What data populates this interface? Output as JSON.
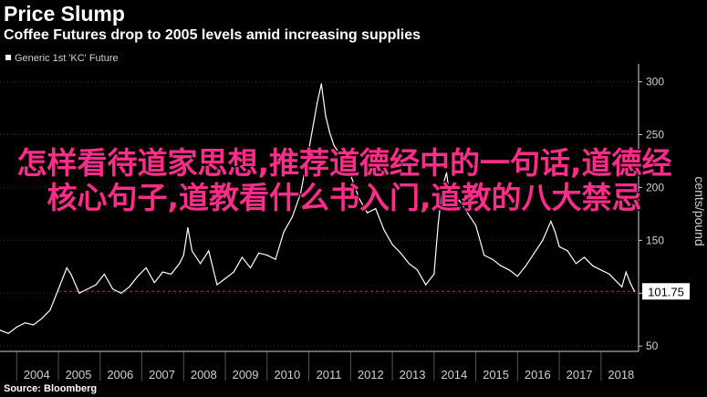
{
  "header": {
    "title": "Price Slump",
    "subtitle": "Coffee Futures drop to 2005 levels amid increasing supplies",
    "source": "Source: Bloomberg"
  },
  "overlay": {
    "text": "怎样看待道家思想,推荐道德经中的一句话,道德经核心句子,道教看什么书入门,道教的八大禁忌"
  },
  "chart_data": {
    "type": "line",
    "legend": {
      "placement": "top-left",
      "entries": [
        "Generic 1st 'KC' Future"
      ]
    },
    "ylabel": "cents/pound",
    "ylim": [
      45,
      310
    ],
    "yticks": [
      50,
      100,
      150,
      200,
      250,
      300
    ],
    "xlim": [
      2003.6,
      2018.9
    ],
    "xticks": [
      "2004",
      "2005",
      "2006",
      "2007",
      "2008",
      "2009",
      "2010",
      "2011",
      "2012",
      "2013",
      "2014",
      "2015",
      "2016",
      "2017",
      "2018"
    ],
    "last_value": 101.75,
    "last_value_label": "101.75",
    "reference_line": 101.75,
    "series": [
      {
        "name": "Generic 1st 'KC' Future",
        "points": [
          [
            2003.6,
            65
          ],
          [
            2003.8,
            62
          ],
          [
            2004.0,
            68
          ],
          [
            2004.2,
            72
          ],
          [
            2004.4,
            70
          ],
          [
            2004.6,
            76
          ],
          [
            2004.8,
            84
          ],
          [
            2005.0,
            104
          ],
          [
            2005.2,
            124
          ],
          [
            2005.3,
            118
          ],
          [
            2005.5,
            100
          ],
          [
            2005.7,
            104
          ],
          [
            2005.9,
            108
          ],
          [
            2006.1,
            118
          ],
          [
            2006.3,
            104
          ],
          [
            2006.5,
            100
          ],
          [
            2006.7,
            106
          ],
          [
            2006.9,
            116
          ],
          [
            2007.1,
            124
          ],
          [
            2007.3,
            110
          ],
          [
            2007.5,
            120
          ],
          [
            2007.7,
            118
          ],
          [
            2007.9,
            128
          ],
          [
            2008.0,
            136
          ],
          [
            2008.1,
            162
          ],
          [
            2008.2,
            140
          ],
          [
            2008.4,
            128
          ],
          [
            2008.6,
            140
          ],
          [
            2008.8,
            108
          ],
          [
            2009.0,
            114
          ],
          [
            2009.2,
            120
          ],
          [
            2009.4,
            134
          ],
          [
            2009.6,
            124
          ],
          [
            2009.8,
            138
          ],
          [
            2010.0,
            136
          ],
          [
            2010.2,
            132
          ],
          [
            2010.4,
            158
          ],
          [
            2010.6,
            172
          ],
          [
            2010.8,
            194
          ],
          [
            2011.0,
            236
          ],
          [
            2011.2,
            280
          ],
          [
            2011.3,
            298
          ],
          [
            2011.4,
            268
          ],
          [
            2011.5,
            252
          ],
          [
            2011.6,
            240
          ],
          [
            2011.8,
            228
          ],
          [
            2011.9,
            220
          ],
          [
            2012.0,
            212
          ],
          [
            2012.2,
            190
          ],
          [
            2012.4,
            176
          ],
          [
            2012.6,
            180
          ],
          [
            2012.8,
            160
          ],
          [
            2013.0,
            146
          ],
          [
            2013.2,
            138
          ],
          [
            2013.4,
            128
          ],
          [
            2013.6,
            122
          ],
          [
            2013.8,
            108
          ],
          [
            2014.0,
            118
          ],
          [
            2014.1,
            166
          ],
          [
            2014.2,
            200
          ],
          [
            2014.3,
            214
          ],
          [
            2014.4,
            184
          ],
          [
            2014.6,
            188
          ],
          [
            2014.8,
            176
          ],
          [
            2015.0,
            164
          ],
          [
            2015.2,
            136
          ],
          [
            2015.4,
            132
          ],
          [
            2015.6,
            126
          ],
          [
            2015.8,
            122
          ],
          [
            2016.0,
            116
          ],
          [
            2016.2,
            126
          ],
          [
            2016.4,
            138
          ],
          [
            2016.6,
            150
          ],
          [
            2016.8,
            168
          ],
          [
            2016.9,
            158
          ],
          [
            2017.0,
            144
          ],
          [
            2017.2,
            140
          ],
          [
            2017.4,
            128
          ],
          [
            2017.6,
            134
          ],
          [
            2017.8,
            126
          ],
          [
            2018.0,
            122
          ],
          [
            2018.2,
            118
          ],
          [
            2018.4,
            110
          ],
          [
            2018.5,
            106
          ],
          [
            2018.6,
            120
          ],
          [
            2018.7,
            110
          ],
          [
            2018.8,
            101.75
          ]
        ]
      }
    ]
  },
  "colors": {
    "background": "#000000",
    "line": "#ffffff",
    "axis": "#cfcfcf",
    "reference": "#c0304a",
    "overlay_text": "#ff2d8a"
  }
}
